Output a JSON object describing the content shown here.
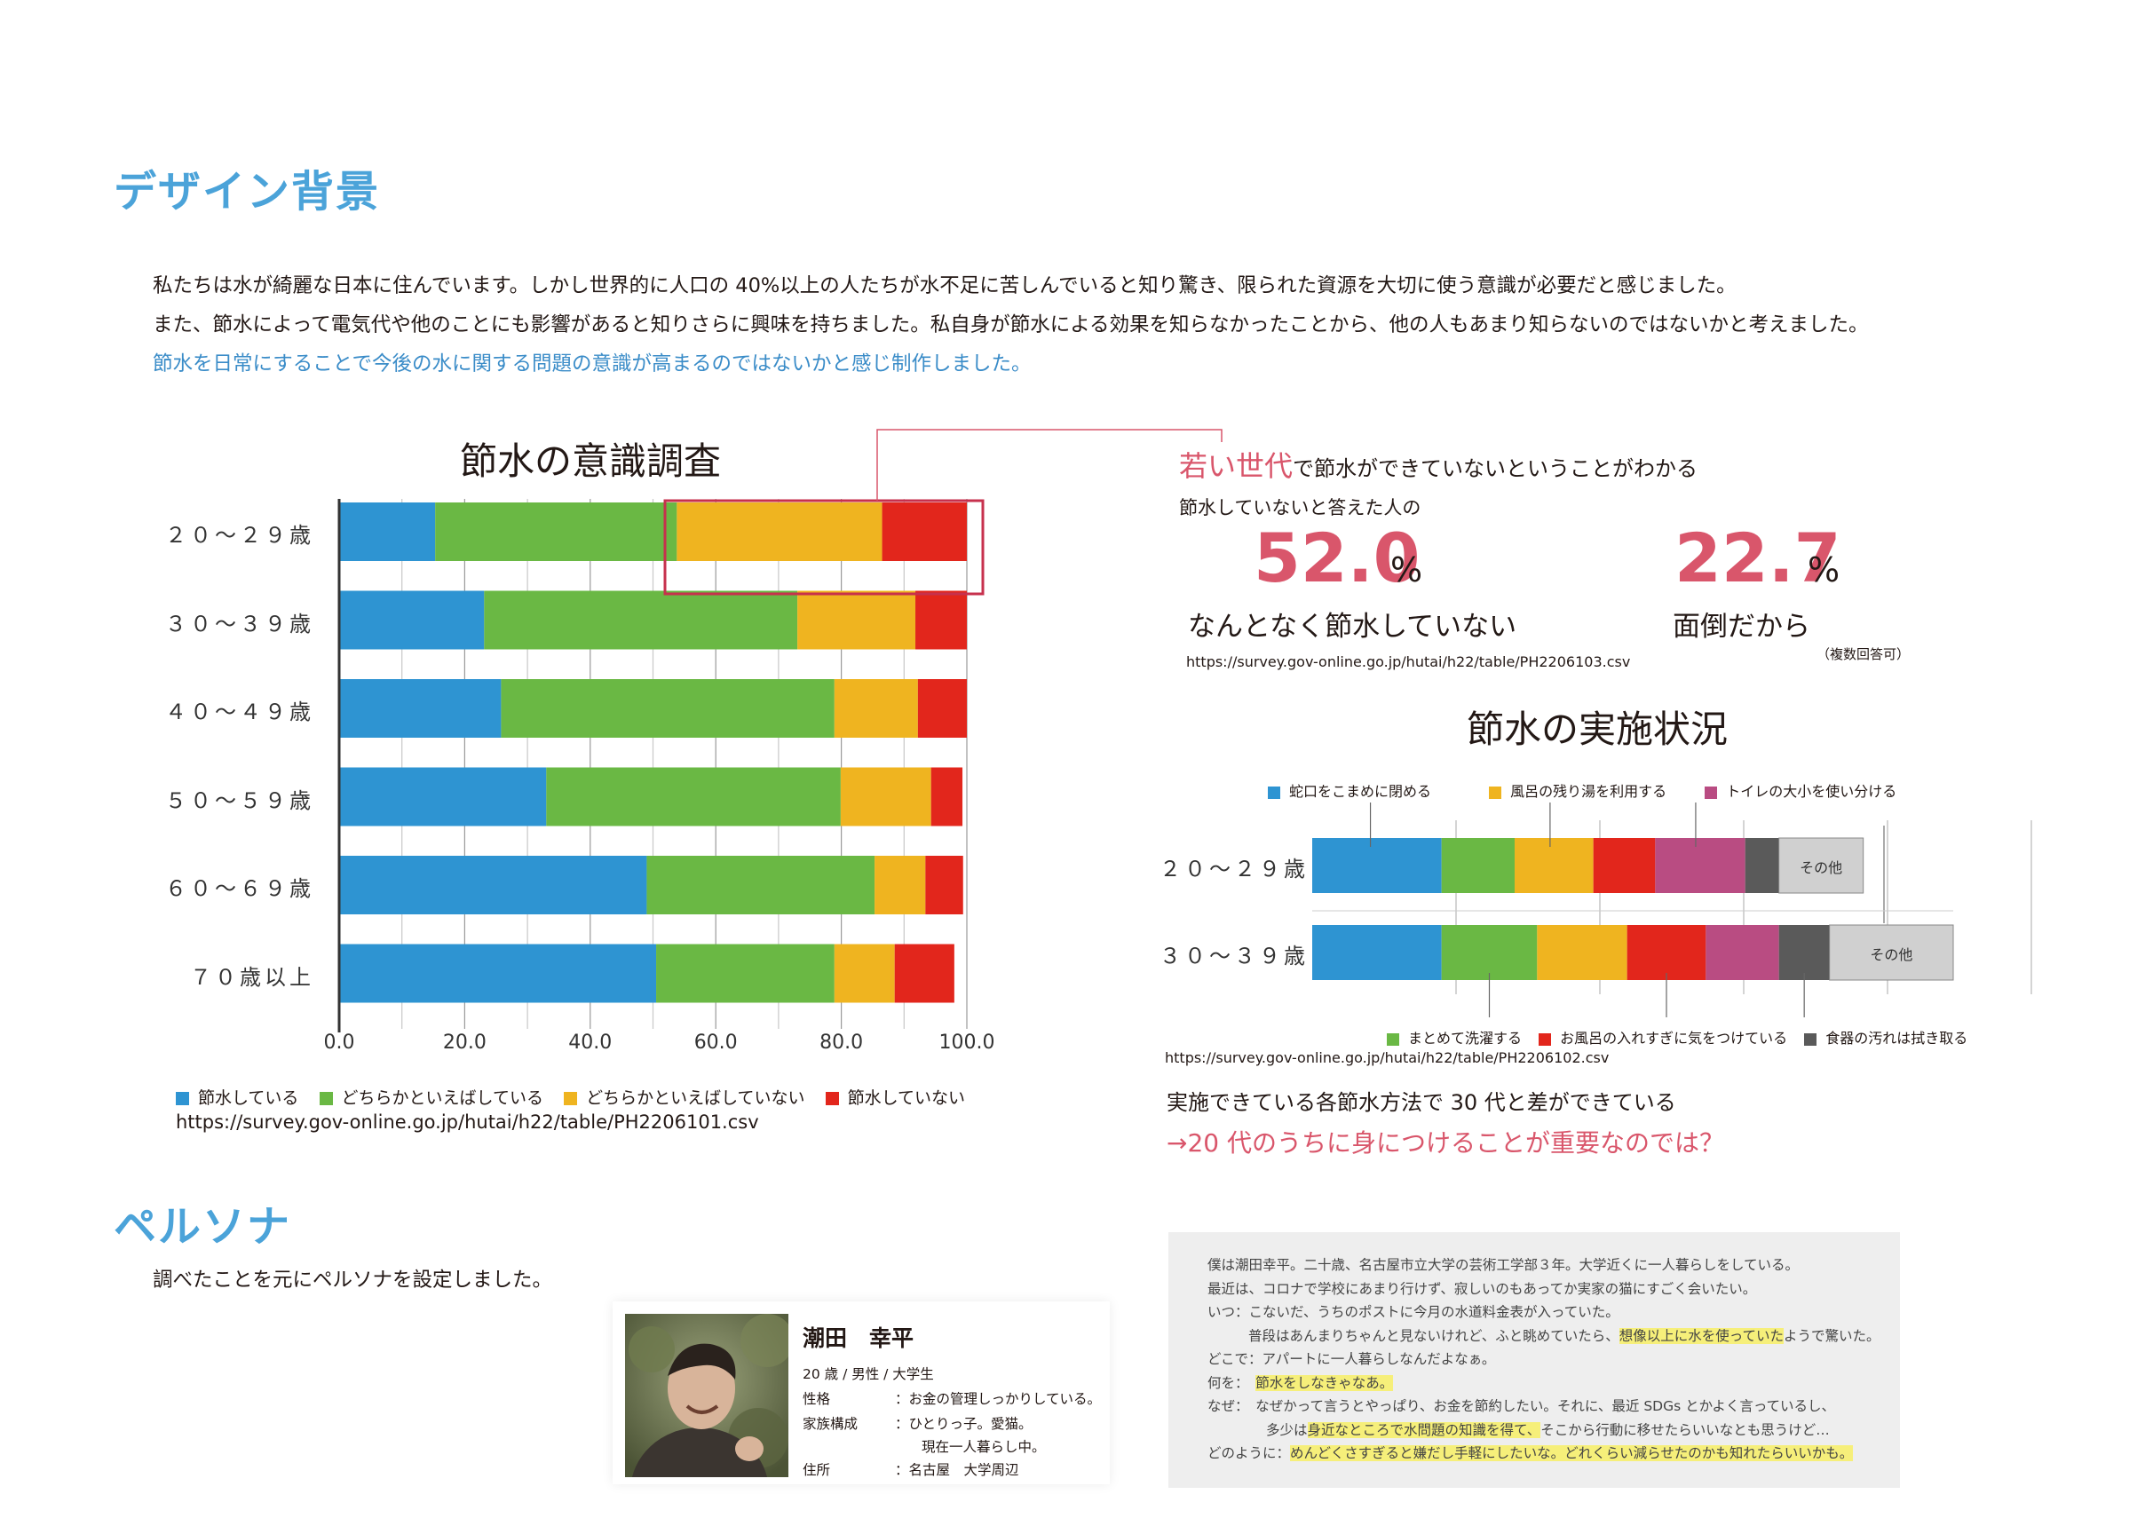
{
  "section1": {
    "title": "デザイン背景",
    "para1": "私たちは水が綺麗な日本に住んでいます。しかし世界的に人口の 40%以上の人たちが水不足に苦しんでいると知り驚き、限られた資源を大切に使う意識が必要だと感じました。",
    "para2": "また、節水によって電気代や他のことにも影響があると知りさらに興味を持ちました。私自身が節水による効果を知らなかったことから、他の人もあまり知らないのではないかと考えました。",
    "para3": "節水を日常にすることで今後の水に関する問題の意識が高まるのではないかと感じ制作しました。"
  },
  "colors": {
    "blue": "#2e94d2",
    "green": "#6ab844",
    "yellow": "#efb420",
    "red": "#e2261c",
    "purple": "#b94c82",
    "gray": "#5a5a5a",
    "light_gray": "#d0d0d0",
    "highlight_red": "#c7314d"
  },
  "chart1": {
    "title": "節水の意識調査",
    "source": "https://survey.gov-online.go.jp/hutai/h22/table/PH2206101.csv"
  },
  "chart_data": [
    {
      "type": "bar",
      "orientation": "horizontal-stacked",
      "title": "節水の意識調査",
      "categories": [
        "２０～２９歳",
        "３０～３９歳",
        "４０～４９歳",
        "５０～５９歳",
        "６０～６９歳",
        "７０歳以上"
      ],
      "series": [
        {
          "name": "節水している",
          "values": [
            15.3,
            23.1,
            25.8,
            33.0,
            49.0,
            50.5
          ]
        },
        {
          "name": "どちらかといえばしている",
          "values": [
            38.5,
            49.9,
            53.1,
            46.9,
            36.3,
            28.4
          ]
        },
        {
          "name": "どちらかといえばしていない",
          "values": [
            32.7,
            18.8,
            13.3,
            14.4,
            8.1,
            9.6
          ]
        },
        {
          "name": "節水していない",
          "values": [
            13.5,
            8.2,
            7.8,
            5.0,
            6.0,
            9.5
          ]
        }
      ],
      "xticks": [
        "0.0",
        "20.0",
        "40.0",
        "60.0",
        "80.0",
        "100.0"
      ],
      "xlim": [
        0,
        100
      ]
    },
    {
      "type": "bar",
      "orientation": "horizontal-stacked",
      "title": "節水の実施状況",
      "categories": [
        "２０～２９歳",
        "３０～３９歳"
      ],
      "series": [
        {
          "name": "蛇口をこまめに閉める",
          "values": [
            23,
            23
          ]
        },
        {
          "name": "まとめて洗濯する",
          "values": [
            13,
            17
          ]
        },
        {
          "name": "風呂の残り湯を利用する",
          "values": [
            14,
            16
          ]
        },
        {
          "name": "お風呂の入れすぎに気をつけている",
          "values": [
            11,
            14
          ]
        },
        {
          "name": "トイレの大小を使い分ける",
          "values": [
            16,
            13
          ]
        },
        {
          "name": "食器の汚れは拭き取る",
          "values": [
            6,
            9
          ]
        },
        {
          "name": "その他",
          "values": [
            15,
            22
          ]
        }
      ],
      "labels_inside": [
        "その他",
        "その他"
      ]
    }
  ],
  "chart2": {
    "title": "節水の実施状況",
    "source": "https://survey.gov-online.go.jp/hutai/h22/table/PH2206102.csv",
    "legend_top": [
      "蛇口をこまめに閉める",
      "風呂の残り湯を利用する",
      "トイレの大小を使い分ける"
    ],
    "legend_bottom": [
      "まとめて洗濯する",
      "お風呂の入れすぎに気をつけている",
      "食器の汚れは拭き取る"
    ],
    "other_label": "その他",
    "conclusion1": "実施できている各節水方法で 30 代と差ができている",
    "conclusion2": "→20 代のうちに身につけることが重要なのでは？"
  },
  "insight": {
    "headline_red": "若い世代",
    "headline_rest": "で節水ができていないということがわかる",
    "subtitle": "節水していないと答えた人の",
    "stat1_value": "52.0",
    "stat1_unit": "%",
    "stat1_label": "なんとなく節水していない",
    "stat2_value": "22.7",
    "stat2_unit": "%",
    "stat2_label": "面倒だから",
    "multi_answer": "（複数回答可）",
    "source": "https://survey.gov-online.go.jp/hutai/h22/table/PH2206103.csv"
  },
  "persona": {
    "title": "ペルソナ",
    "intro": "調べたことを元にペルソナを設定しました。",
    "name": "潮田　幸平",
    "profile": "20 歳 / 男性 / 大学生",
    "row1_key": "性格",
    "row1_val": "：お金の管理しっかりしている。",
    "row2_key": "家族構成",
    "row2_val": "：ひとりっ子。愛猫。",
    "row2_val2": "現在一人暮らし中。",
    "row3_key": "住所",
    "row3_val": "：名古屋　大学周辺"
  },
  "story": {
    "l1": "僕は潮田幸平。二十歳、名古屋市立大学の芸術工学部３年。大学近くに一人暮らしをしている。",
    "l2": "最近は、コロナで学校にあまり行けず、寂しいのもあってか実家の猫にすごく会いたい。",
    "l3": "いつ：こないだ、うちのポストに今月の水道料金表が入っていた。",
    "l4a": "普段はあんまりちゃんと見ないけれど、ふと眺めていたら、",
    "l4b": "想像以上に水を使っていた",
    "l4c": "ようで驚いた。",
    "l5": "どこで：アパートに一人暮らしなんだよなぁ。",
    "l6a": "何を：",
    "l6b": "節水をしなきゃなあ。",
    "l7": "なぜ：　なぜかって言うとやっぱり、お金を節約したい。それに、最近 SDGs とかよく言っているし、",
    "l8a": "多少は",
    "l8b": "身近なところで水問題の知識を得て、",
    "l8c": "そこから行動に移せたらいいなとも思うけど…",
    "l9a": "どのように：",
    "l9b": "めんどくさすぎると嫌だし手軽にしたいな。どれくらい減らせたのかも知れたらいいかも。"
  }
}
